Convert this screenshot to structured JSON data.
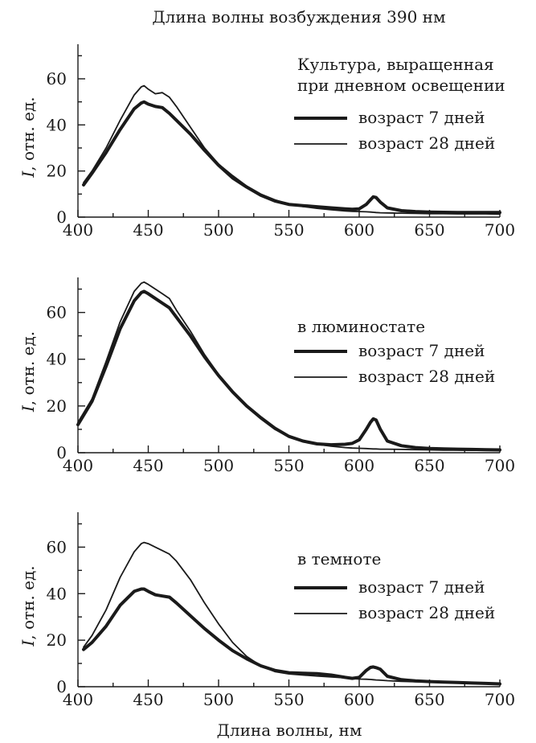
{
  "figure": {
    "title": "Длина волны возбуждения 390 нм",
    "xlabel": "Длина волны, нм"
  },
  "chart_data": [
    {
      "type": "line",
      "title": "Культура, выращенная при дневном освещении",
      "title_lines": [
        "Культура, выращенная",
        "при дневном освещении"
      ],
      "xlabel": "Длина волны, нм",
      "ylabel_italic": "I",
      "ylabel_rest": ", отн. ед.",
      "xlim": [
        400,
        700
      ],
      "ylim": [
        0,
        75
      ],
      "xticks": [
        400,
        450,
        500,
        550,
        600,
        650,
        700
      ],
      "yticks": [
        0,
        20,
        40,
        60
      ],
      "x": [
        404,
        410,
        420,
        430,
        440,
        445,
        447,
        450,
        455,
        460,
        465,
        470,
        480,
        490,
        500,
        510,
        520,
        530,
        540,
        550,
        560,
        570,
        580,
        590,
        595,
        600,
        605,
        608,
        610,
        612,
        615,
        620,
        630,
        640,
        650,
        660,
        670,
        680,
        690,
        700
      ],
      "series": [
        {
          "name": "возраст 7 дней",
          "line_weight": "thick",
          "values": [
            14,
            19,
            28,
            38,
            47,
            49.5,
            50,
            49,
            48,
            47.5,
            45,
            42,
            36,
            29,
            22.5,
            17,
            13,
            9.5,
            7,
            5.5,
            5,
            4.5,
            4,
            3.6,
            3.4,
            3.6,
            5.5,
            7.5,
            8.8,
            8.5,
            6.5,
            4,
            2.8,
            2.4,
            2.2,
            2.1,
            2.0,
            2.0,
            2.0,
            2.0
          ]
        },
        {
          "name": "возраст 28 дней",
          "line_weight": "thin",
          "values": [
            15,
            20,
            30,
            42,
            53,
            56.5,
            57,
            55.5,
            53.5,
            54,
            52,
            48,
            39,
            30,
            23,
            18,
            13.5,
            10,
            7.5,
            5.6,
            4.6,
            3.8,
            3.2,
            2.7,
            2.5,
            2.4,
            2.3,
            2.2,
            2.1,
            2.0,
            1.9,
            1.8,
            1.7,
            1.6,
            1.5,
            1.5,
            1.4,
            1.4,
            1.4,
            1.3
          ]
        }
      ]
    },
    {
      "type": "line",
      "title": "в люминостате",
      "title_lines": [
        "в люминостате"
      ],
      "xlabel": "Длина волны, нм",
      "ylabel_italic": "I",
      "ylabel_rest": ", отн. ед.",
      "xlim": [
        400,
        700
      ],
      "ylim": [
        0,
        75
      ],
      "xticks": [
        400,
        450,
        500,
        550,
        600,
        650,
        700
      ],
      "yticks": [
        0,
        20,
        40,
        60
      ],
      "x": [
        400,
        410,
        420,
        430,
        440,
        445,
        447,
        450,
        455,
        460,
        465,
        470,
        480,
        490,
        500,
        510,
        520,
        530,
        540,
        550,
        560,
        570,
        580,
        590,
        595,
        600,
        605,
        608,
        610,
        612,
        615,
        620,
        630,
        640,
        650,
        660,
        670,
        680,
        690,
        700
      ],
      "series": [
        {
          "name": "возраст 7 дней",
          "line_weight": "thick",
          "values": [
            12,
            22,
            37,
            53,
            65,
            68.5,
            69,
            68,
            66,
            64,
            62,
            58,
            50,
            41,
            33,
            26,
            20,
            15,
            10.5,
            7,
            5,
            3.8,
            3.4,
            3.6,
            4,
            5.5,
            10,
            13,
            14.5,
            14,
            10,
            5,
            3,
            2.2,
            1.8,
            1.6,
            1.5,
            1.4,
            1.3,
            1.2
          ]
        },
        {
          "name": "возраст 28 дней",
          "line_weight": "thin",
          "values": [
            13,
            23,
            39,
            56,
            69,
            72.5,
            73,
            72,
            70,
            68,
            66,
            61,
            52,
            42,
            33.5,
            26.5,
            20,
            14.5,
            10,
            7,
            5,
            3.6,
            2.8,
            2.2,
            2.0,
            1.9,
            1.8,
            1.7,
            1.6,
            1.6,
            1.5,
            1.5,
            1.4,
            1.3,
            1.2,
            1.1,
            1.1,
            1.0,
            1.0,
            1.0
          ]
        }
      ]
    },
    {
      "type": "line",
      "title": "в темноте",
      "title_lines": [
        "в темноте"
      ],
      "xlabel": "Длина волны, нм",
      "ylabel_italic": "I",
      "ylabel_rest": ", отн. ед.",
      "xlim": [
        400,
        700
      ],
      "ylim": [
        0,
        75
      ],
      "xticks": [
        400,
        450,
        500,
        550,
        600,
        650,
        700
      ],
      "yticks": [
        0,
        20,
        40,
        60
      ],
      "x": [
        404,
        410,
        420,
        430,
        440,
        445,
        447,
        450,
        455,
        460,
        465,
        470,
        480,
        490,
        500,
        510,
        520,
        530,
        540,
        550,
        560,
        570,
        580,
        590,
        595,
        600,
        605,
        608,
        610,
        612,
        615,
        620,
        630,
        640,
        650,
        660,
        670,
        680,
        690,
        700
      ],
      "series": [
        {
          "name": "возраст 7 дней",
          "line_weight": "thick",
          "values": [
            16,
            19,
            26,
            35,
            41,
            42,
            42,
            41,
            39.5,
            39,
            38.5,
            36,
            30.5,
            25,
            20,
            15.5,
            12,
            9,
            7,
            6,
            5.8,
            5.6,
            5,
            4,
            3.6,
            4,
            7,
            8.3,
            8.5,
            8.2,
            7.5,
            4.5,
            3,
            2.5,
            2.2,
            2,
            1.8,
            1.6,
            1.4,
            1.2
          ]
        },
        {
          "name": "возраст 28 дней",
          "line_weight": "thin",
          "values": [
            17,
            22,
            33,
            47,
            58,
            61.5,
            62,
            61.5,
            60,
            58.5,
            57,
            54,
            46,
            36,
            27,
            19,
            13,
            9,
            6.5,
            5.5,
            5,
            4.6,
            4.2,
            3.8,
            3.5,
            3.3,
            3.2,
            3.1,
            3.0,
            2.9,
            2.8,
            2.6,
            2.3,
            2.1,
            2.0,
            1.8,
            1.6,
            1.5,
            1.3,
            1.2
          ]
        }
      ]
    }
  ]
}
